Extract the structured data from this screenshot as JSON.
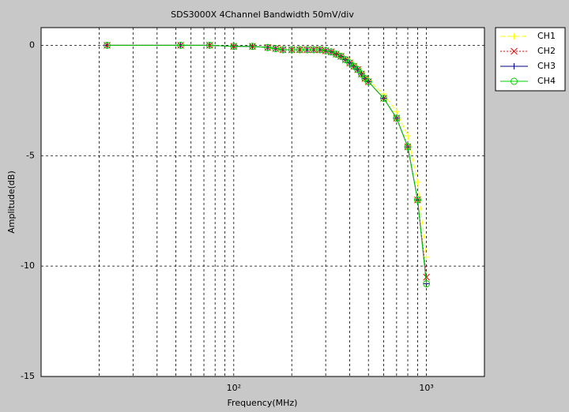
{
  "chart_data": {
    "type": "line",
    "title": "SDS3000X 4Channel Bandwidth 50mV/div",
    "x_label": "Frequency(MHz)",
    "y_label": "Amplitude(dB)",
    "xscale": "log",
    "grid": true,
    "legend": "outside-right-top",
    "xlim": [
      10,
      2000
    ],
    "ylim": [
      -15,
      0.8
    ],
    "xticks": [
      {
        "value": 100,
        "label": "10²"
      },
      {
        "value": 1000,
        "label": "10³"
      }
    ],
    "xminorticks": [
      20,
      30,
      40,
      50,
      60,
      70,
      80,
      90,
      200,
      300,
      400,
      500,
      600,
      700,
      800,
      900,
      2000
    ],
    "yticks": [
      -15,
      -10,
      -5,
      0
    ],
    "x": [
      22,
      53,
      75,
      100,
      125,
      150,
      165,
      180,
      200,
      220,
      240,
      260,
      280,
      300,
      320,
      340,
      360,
      380,
      400,
      420,
      440,
      460,
      480,
      500,
      600,
      700,
      800,
      900,
      1000
    ],
    "series": [
      {
        "name": "CH1",
        "color": "#ffff00",
        "linestyle": "dashed",
        "marker": "plus",
        "values": [
          0,
          0,
          0,
          -0.05,
          -0.05,
          -0.1,
          -0.15,
          -0.2,
          -0.2,
          -0.2,
          -0.2,
          -0.2,
          -0.2,
          -0.25,
          -0.3,
          -0.4,
          -0.5,
          -0.6,
          -0.75,
          -0.9,
          -1.05,
          -1.25,
          -1.45,
          -1.6,
          -2.2,
          -3.0,
          -4.1,
          -6.2,
          -9.6
        ]
      },
      {
        "name": "CH2",
        "color": "#ff0000",
        "linestyle": "dotted",
        "marker": "cross",
        "values": [
          0,
          0,
          0,
          -0.05,
          -0.05,
          -0.1,
          -0.15,
          -0.2,
          -0.2,
          -0.2,
          -0.2,
          -0.2,
          -0.2,
          -0.25,
          -0.3,
          -0.4,
          -0.5,
          -0.65,
          -0.8,
          -0.95,
          -1.1,
          -1.3,
          -1.5,
          -1.65,
          -2.4,
          -3.3,
          -4.6,
          -7.0,
          -10.5
        ]
      },
      {
        "name": "CH3",
        "color": "#000080",
        "linestyle": "solid",
        "marker": "plus",
        "values": [
          0,
          0,
          0,
          -0.05,
          -0.05,
          -0.1,
          -0.15,
          -0.2,
          -0.2,
          -0.2,
          -0.2,
          -0.2,
          -0.2,
          -0.25,
          -0.3,
          -0.4,
          -0.5,
          -0.65,
          -0.8,
          -0.95,
          -1.1,
          -1.3,
          -1.5,
          -1.65,
          -2.4,
          -3.3,
          -4.6,
          -7.0,
          -10.8
        ]
      },
      {
        "name": "CH4",
        "color": "#00d000",
        "linestyle": "solid",
        "marker": "circle",
        "values": [
          0,
          0,
          0,
          -0.05,
          -0.05,
          -0.1,
          -0.15,
          -0.2,
          -0.2,
          -0.2,
          -0.2,
          -0.2,
          -0.2,
          -0.25,
          -0.3,
          -0.4,
          -0.5,
          -0.65,
          -0.8,
          -0.95,
          -1.1,
          -1.3,
          -1.5,
          -1.65,
          -2.4,
          -3.3,
          -4.6,
          -7.0,
          -10.8
        ]
      }
    ]
  }
}
